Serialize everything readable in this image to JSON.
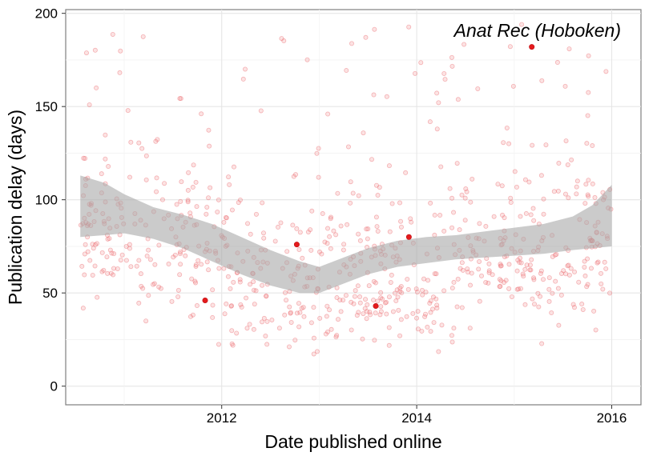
{
  "chart_data": {
    "type": "scatter",
    "title": "",
    "xlabel": "Date published online",
    "ylabel": "Publication delay (days)",
    "x_units": "years",
    "xlim": [
      2010.4,
      2016.3
    ],
    "ylim": [
      -10,
      202
    ],
    "x_ticks": [
      2012,
      2014,
      2016
    ],
    "x_tick_labels": [
      "2012",
      "2014",
      "2016"
    ],
    "y_ticks": [
      0,
      50,
      100,
      150,
      200
    ],
    "y_tick_labels": [
      "0",
      "50",
      "100",
      "150",
      "200"
    ],
    "grid": true,
    "background_points_color": "#f08080",
    "highlight_color": "#e41a1c",
    "annotation": "Anat Rec (Hoboken)",
    "highlighted_points": [
      {
        "x": 2011.83,
        "y": 46
      },
      {
        "x": 2012.77,
        "y": 76
      },
      {
        "x": 2013.58,
        "y": 43
      },
      {
        "x": 2013.92,
        "y": 80
      },
      {
        "x": 2015.18,
        "y": 182
      }
    ],
    "smooth_band": {
      "x": [
        2010.55,
        2010.8,
        2011.0,
        2011.3,
        2011.6,
        2011.9,
        2012.2,
        2012.5,
        2012.8,
        2013.0,
        2013.2,
        2013.5,
        2013.8,
        2014.1,
        2014.4,
        2014.7,
        2015.0,
        2015.3,
        2015.6,
        2015.8,
        2016.0
      ],
      "lower": [
        80,
        81,
        82,
        79,
        74,
        67,
        60,
        54,
        50,
        50,
        54,
        60,
        64,
        66,
        68,
        69,
        70,
        71,
        73,
        74,
        75
      ],
      "upper": [
        113,
        109,
        103,
        96,
        92,
        87,
        80,
        73,
        67,
        64,
        68,
        74,
        78,
        80,
        81,
        83,
        85,
        87,
        91,
        97,
        108
      ]
    }
  }
}
